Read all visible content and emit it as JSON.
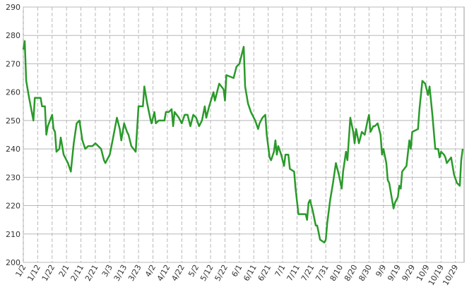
{
  "chart_data": {
    "type": "line",
    "color": "#2a9a2a",
    "grid": true,
    "x": [
      2,
      3,
      4,
      6,
      9,
      10,
      14,
      15,
      17,
      18,
      19,
      22,
      23,
      24,
      25,
      27,
      28,
      30,
      33,
      35,
      37,
      39,
      41,
      43,
      45,
      47,
      50,
      52,
      56,
      58,
      59,
      62,
      64,
      67,
      69,
      70,
      72,
      74,
      75,
      77,
      80,
      82,
      85,
      86,
      88,
      90,
      91,
      93,
      94,
      96,
      100,
      101,
      103,
      105,
      106,
      107,
      110,
      112,
      114,
      116,
      118,
      120,
      122,
      124,
      126,
      128,
      129,
      131,
      134,
      135,
      138,
      141,
      142,
      143,
      148,
      150,
      152,
      155,
      156,
      158,
      160,
      163,
      165,
      166,
      168,
      170,
      171,
      173,
      174,
      176,
      177,
      178,
      179,
      181,
      183,
      184,
      186,
      187,
      190,
      191,
      193,
      198,
      199,
      200,
      201,
      203,
      205,
      206,
      208,
      211,
      212,
      213,
      215,
      217,
      219,
      221,
      223,
      224,
      226,
      227,
      229,
      231,
      232,
      233,
      235,
      237,
      239,
      241,
      242,
      243,
      245,
      246,
      248,
      250,
      251,
      252,
      254,
      255,
      256,
      259,
      260,
      262,
      263,
      264,
      265,
      268,
      270,
      271,
      272,
      276,
      277,
      279,
      281,
      283,
      284,
      286,
      288,
      290,
      291,
      292,
      294,
      295,
      296,
      299,
      301,
      303,
      305,
      306,
      307
    ],
    "values": [
      275,
      278,
      264,
      258,
      250,
      258,
      258,
      255,
      255,
      245,
      248,
      252,
      247,
      246,
      239,
      240,
      244,
      238,
      235,
      232,
      242,
      249,
      250,
      243,
      240,
      241,
      241,
      242,
      240,
      236,
      235,
      238,
      243,
      251,
      247,
      243,
      249,
      246,
      245,
      241,
      239,
      255,
      255,
      262,
      256,
      251,
      249,
      253,
      249,
      250,
      250,
      253,
      253,
      254,
      248,
      253,
      251,
      249,
      252,
      252,
      248,
      252,
      251,
      248,
      250,
      255,
      251,
      255,
      260,
      257,
      263,
      261,
      257,
      266,
      265,
      269,
      270,
      276,
      262,
      256,
      253,
      250,
      247,
      249,
      251,
      252,
      245,
      237,
      236,
      239,
      243,
      238,
      241,
      238,
      234,
      238,
      238,
      233,
      232,
      226,
      217,
      217,
      215,
      221,
      222,
      218,
      213,
      213,
      208,
      207,
      208,
      214,
      222,
      228,
      235,
      231,
      226,
      232,
      239,
      236,
      251,
      246,
      242,
      247,
      242,
      246,
      245,
      250,
      252,
      246,
      248,
      248,
      249,
      245,
      238,
      240,
      235,
      229,
      228,
      219,
      221,
      223,
      227,
      226,
      232,
      234,
      243,
      240,
      246,
      247,
      254,
      264,
      263,
      259,
      262,
      252,
      240,
      240,
      237,
      239,
      238,
      237,
      235,
      237,
      231,
      228,
      227,
      236,
      240
    ],
    "xlim": [
      2,
      308
    ],
    "xticks": [
      {
        "value": 2,
        "label": "1/2"
      },
      {
        "value": 12,
        "label": "1/12"
      },
      {
        "value": 22,
        "label": "1/22"
      },
      {
        "value": 32,
        "label": "2/1"
      },
      {
        "value": 42,
        "label": "2/11"
      },
      {
        "value": 52,
        "label": "2/21"
      },
      {
        "value": 62,
        "label": "3/3"
      },
      {
        "value": 72,
        "label": "3/13"
      },
      {
        "value": 82,
        "label": "3/23"
      },
      {
        "value": 92,
        "label": "4/2"
      },
      {
        "value": 102,
        "label": "4/12"
      },
      {
        "value": 112,
        "label": "4/22"
      },
      {
        "value": 122,
        "label": "5/2"
      },
      {
        "value": 132,
        "label": "5/12"
      },
      {
        "value": 142,
        "label": "5/22"
      },
      {
        "value": 152,
        "label": "6/1"
      },
      {
        "value": 162,
        "label": "6/11"
      },
      {
        "value": 172,
        "label": "6/21"
      },
      {
        "value": 182,
        "label": "7/1"
      },
      {
        "value": 192,
        "label": "7/11"
      },
      {
        "value": 202,
        "label": "7/21"
      },
      {
        "value": 212,
        "label": "7/31"
      },
      {
        "value": 222,
        "label": "8/10"
      },
      {
        "value": 232,
        "label": "8/20"
      },
      {
        "value": 242,
        "label": "8/30"
      },
      {
        "value": 252,
        "label": "9/9"
      },
      {
        "value": 262,
        "label": "9/19"
      },
      {
        "value": 272,
        "label": "9/29"
      },
      {
        "value": 282,
        "label": "10/9"
      },
      {
        "value": 292,
        "label": "10/19"
      },
      {
        "value": 302,
        "label": "10/29"
      }
    ],
    "ylim": [
      200,
      290
    ],
    "yticks": [
      200,
      210,
      220,
      230,
      240,
      250,
      260,
      270,
      280,
      290
    ]
  }
}
